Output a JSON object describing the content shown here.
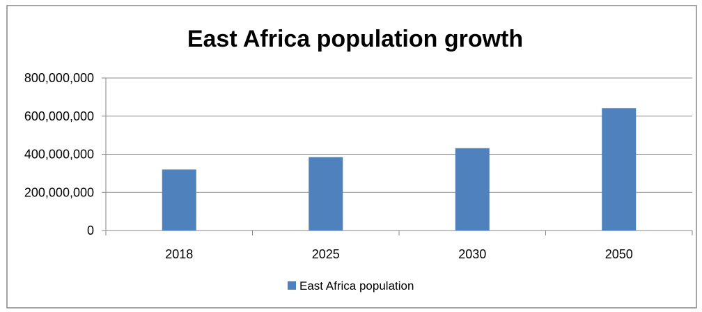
{
  "chart_data": {
    "type": "bar",
    "title": "East Africa population growth",
    "xlabel": "",
    "ylabel": "",
    "categories": [
      "2018",
      "2025",
      "2030",
      "2050"
    ],
    "series": [
      {
        "name": "East Africa population",
        "values": [
          320000000,
          385000000,
          432000000,
          642000000
        ]
      }
    ],
    "ylim": [
      0,
      800000000
    ],
    "y_ticks": [
      0,
      200000000,
      400000000,
      600000000,
      800000000
    ],
    "y_tick_labels": [
      "0",
      "200,000,000",
      "400,000,000",
      "600,000,000",
      "800,000,000"
    ],
    "grid": true,
    "legend": "bottom",
    "colors": {
      "bar": "#4F81BD",
      "grid": "#8C8C8C",
      "axis": "#868686",
      "border": "#868686"
    }
  }
}
